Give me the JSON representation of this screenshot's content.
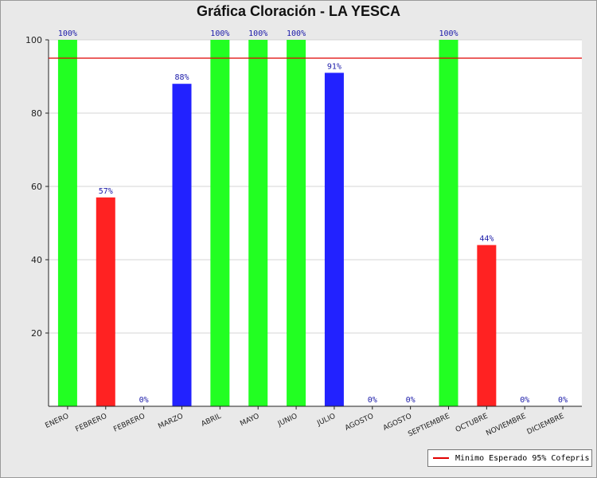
{
  "chart_data": {
    "type": "bar",
    "title": "Gráfica Cloración - LA YESCA",
    "categories": [
      "ENERO",
      "FEBRERO",
      "FEBRERO",
      "MARZO",
      "ABRIL",
      "MAYO",
      "JUNIO",
      "JULIO",
      "AGOSTO",
      "AGOSTO",
      "SEPTIEMBRE",
      "OCTUBRE",
      "NOVIEMBRE",
      "DICIEMBRE"
    ],
    "values": [
      100,
      57,
      0,
      88,
      100,
      100,
      100,
      91,
      0,
      0,
      100,
      44,
      0,
      0
    ],
    "data_labels": [
      "100%",
      "57%",
      "0%",
      "88%",
      "100%",
      "100%",
      "100%",
      "91%",
      "0%",
      "0%",
      "100%",
      "44%",
      "0%",
      "0%"
    ],
    "bar_colors": [
      "#22ff22",
      "#ff2222",
      "#22ff22",
      "#2222ff",
      "#22ff22",
      "#22ff22",
      "#22ff22",
      "#2222ff",
      "#22ff22",
      "#22ff22",
      "#22ff22",
      "#ff2222",
      "#22ff22",
      "#22ff22"
    ],
    "ylim": [
      0,
      100
    ],
    "yticks": [
      20,
      40,
      60,
      80,
      100
    ],
    "ytick_labels": [
      "20",
      "40",
      "60",
      "80",
      "100"
    ],
    "reference_line": {
      "value": 95,
      "color": "#e10000",
      "label": "Minimo Esperado 95% Cofepris"
    },
    "xlabel": "",
    "ylabel": "",
    "grid": true,
    "legend_position": "bottom-right"
  }
}
